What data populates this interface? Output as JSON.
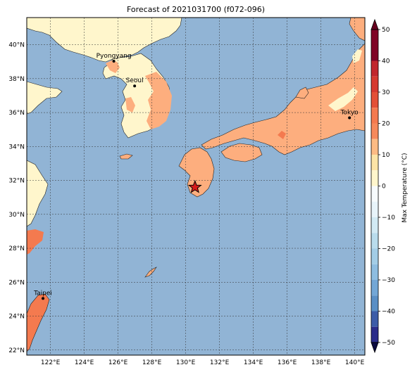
{
  "title": "Forecast of 2021031700 (f072-096)",
  "colorbar": {
    "label": "Max Temperature (°C)",
    "ticks": [
      "50",
      "40",
      "30",
      "20",
      "10",
      "0",
      "−20",
      "−30",
      "−40",
      "−50"
    ],
    "colors": [
      "#7f0426",
      "#c1272d",
      "#e35037",
      "#f6895b",
      "#fdbb84",
      "#fff6cc",
      "#e8f4fa",
      "#b9dcec",
      "#8ebde0",
      "#5a8fc5",
      "#3c5ca8",
      "#2a2c8a",
      "#1c1a6a"
    ]
  },
  "map": {
    "lat_labels": [
      "40°N",
      "38°N",
      "36°N",
      "34°N",
      "32°N",
      "30°N",
      "28°N",
      "26°N",
      "24°N",
      "22°N"
    ],
    "lon_labels": [
      "122°E",
      "124°E",
      "126°E",
      "128°E",
      "130°E",
      "132°E",
      "134°E",
      "136°E",
      "138°E",
      "140°E"
    ],
    "extent": {
      "lon": [
        120.6,
        140.6
      ],
      "lat": [
        21.7,
        41.6
      ]
    },
    "cities": [
      {
        "name": "Pyongyang",
        "lon": 125.75,
        "lat": 39.03
      },
      {
        "name": "Seoul",
        "lon": 126.98,
        "lat": 37.57
      },
      {
        "name": "Tokyo",
        "lon": 139.69,
        "lat": 35.69
      },
      {
        "name": "Taipei",
        "lon": 121.56,
        "lat": 25.04
      }
    ],
    "marker": {
      "lon": 130.55,
      "lat": 31.6
    },
    "colors": {
      "ocean": "#91b4d5",
      "land_cool": "#fff6cc",
      "land_warm": "#fdae7e",
      "land_hot": "#f47a4f"
    }
  }
}
